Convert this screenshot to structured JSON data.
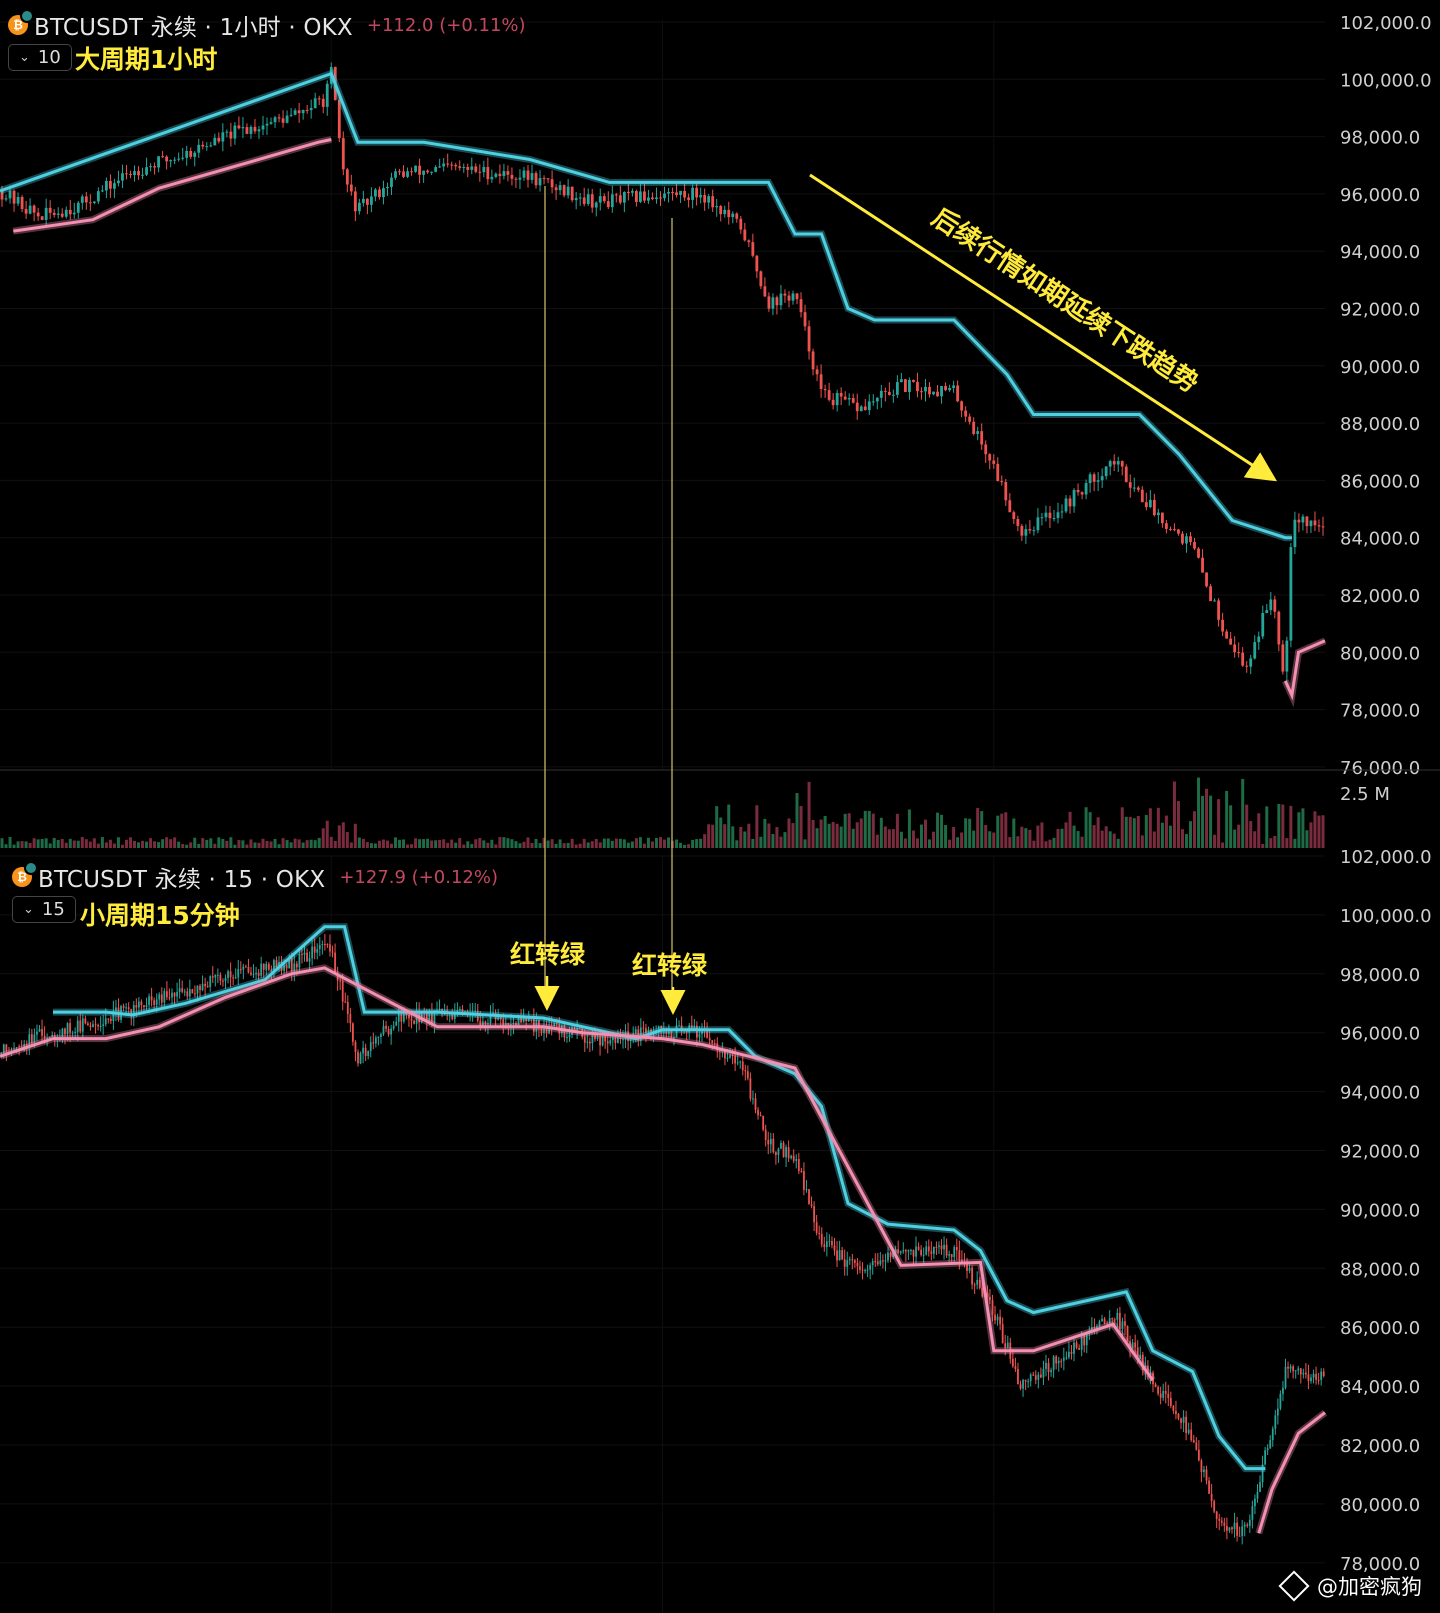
{
  "top_header": {
    "symbol": "BTCUSDT 永续 · 1小时 · OKX",
    "change": "+112.0 (+0.11%)",
    "interval_box": "10",
    "tag": "大周期1小时"
  },
  "bottom_header": {
    "symbol": "BTCUSDT 永续 · 15 · OKX",
    "change": "+127.9 (+0.12%)",
    "interval_box": "15",
    "tag": "小周期15分钟"
  },
  "annotations": {
    "trend_text": "后续行情如期延续下跌趋势",
    "arrow_label_1": "红转绿",
    "arrow_label_2": "红转绿"
  },
  "watermark": "@加密疯狗",
  "colors": {
    "up": "#26a69a",
    "down": "#ef5350",
    "resistance": "#4dd0e1",
    "support": "#f48fb1",
    "annotation": "#ffeb3b"
  },
  "chart_data": [
    {
      "type": "candlestick",
      "title": "BTCUSDT 永续 · 1小时 · OKX",
      "y_ticks": [
        "102,000.0",
        "100,000.0",
        "98,000.0",
        "96,000.0",
        "94,000.0",
        "92,000.0",
        "90,000.0",
        "88,000.0",
        "86,000.0",
        "84,000.0",
        "82,000.0",
        "80,000.0",
        "78,000.0",
        "76,000.0"
      ],
      "ylim": [
        76000,
        102600
      ],
      "volume_tick": "2.5 M",
      "price_path": [
        [
          0,
          96100
        ],
        [
          0.03,
          95200
        ],
        [
          0.06,
          95600
        ],
        [
          0.1,
          96800
        ],
        [
          0.14,
          97400
        ],
        [
          0.18,
          98200
        ],
        [
          0.22,
          98700
        ],
        [
          0.245,
          99300
        ],
        [
          0.25,
          100200
        ],
        [
          0.26,
          96500
        ],
        [
          0.27,
          95400
        ],
        [
          0.3,
          96700
        ],
        [
          0.34,
          96900
        ],
        [
          0.4,
          96600
        ],
        [
          0.45,
          95700
        ],
        [
          0.5,
          96000
        ],
        [
          0.53,
          96000
        ],
        [
          0.56,
          94800
        ],
        [
          0.58,
          92200
        ],
        [
          0.6,
          92500
        ],
        [
          0.62,
          89000
        ],
        [
          0.65,
          88500
        ],
        [
          0.68,
          89300
        ],
        [
          0.72,
          89100
        ],
        [
          0.75,
          86500
        ],
        [
          0.77,
          84200
        ],
        [
          0.8,
          85000
        ],
        [
          0.84,
          86700
        ],
        [
          0.87,
          85000
        ],
        [
          0.9,
          83700
        ],
        [
          0.92,
          81200
        ],
        [
          0.94,
          79400
        ],
        [
          0.96,
          82100
        ],
        [
          0.97,
          79000
        ],
        [
          0.975,
          84800
        ],
        [
          1.0,
          84300
        ]
      ],
      "resistance_path": [
        [
          0,
          96100
        ],
        [
          0.25,
          100200
        ],
        [
          0.27,
          97800
        ],
        [
          0.32,
          97800
        ],
        [
          0.4,
          97200
        ],
        [
          0.46,
          96400
        ],
        [
          0.58,
          96400
        ],
        [
          0.6,
          94600
        ],
        [
          0.62,
          94600
        ],
        [
          0.64,
          92000
        ],
        [
          0.66,
          91600
        ],
        [
          0.72,
          91600
        ],
        [
          0.76,
          89700
        ],
        [
          0.78,
          88300
        ],
        [
          0.86,
          88300
        ],
        [
          0.89,
          86900
        ],
        [
          0.93,
          84600
        ],
        [
          0.97,
          84000
        ],
        [
          0.975,
          84000
        ]
      ],
      "support_path": [
        [
          0.01,
          94700
        ],
        [
          0.07,
          95100
        ],
        [
          0.12,
          96200
        ],
        [
          0.18,
          97000
        ],
        [
          0.24,
          97800
        ],
        [
          0.25,
          97900
        ]
      ],
      "support_path_2": [
        [
          0.97,
          79000
        ],
        [
          0.975,
          78500
        ],
        [
          0.98,
          80000
        ],
        [
          1.0,
          80400
        ]
      ]
    },
    {
      "type": "candlestick",
      "title": "BTCUSDT 永续 · 15 · OKX",
      "y_ticks": [
        "102,000.0",
        "100,000.0",
        "98,000.0",
        "96,000.0",
        "94,000.0",
        "92,000.0",
        "90,000.0",
        "88,000.0",
        "86,000.0",
        "84,000.0",
        "82,000.0",
        "80,000.0",
        "78,000.0"
      ],
      "ylim": [
        77900,
        102200
      ],
      "price_path": [
        [
          0,
          95300
        ],
        [
          0.03,
          95900
        ],
        [
          0.06,
          96200
        ],
        [
          0.1,
          96800
        ],
        [
          0.14,
          97400
        ],
        [
          0.18,
          98100
        ],
        [
          0.22,
          98300
        ],
        [
          0.245,
          99000
        ],
        [
          0.25,
          98800
        ],
        [
          0.27,
          95100
        ],
        [
          0.3,
          96500
        ],
        [
          0.34,
          96600
        ],
        [
          0.4,
          96300
        ],
        [
          0.45,
          95800
        ],
        [
          0.5,
          96000
        ],
        [
          0.53,
          96100
        ],
        [
          0.56,
          94800
        ],
        [
          0.58,
          92200
        ],
        [
          0.6,
          91800
        ],
        [
          0.62,
          88900
        ],
        [
          0.65,
          87800
        ],
        [
          0.68,
          88600
        ],
        [
          0.72,
          88600
        ],
        [
          0.75,
          86500
        ],
        [
          0.77,
          84100
        ],
        [
          0.8,
          84900
        ],
        [
          0.84,
          86500
        ],
        [
          0.87,
          84200
        ],
        [
          0.9,
          82300
        ],
        [
          0.92,
          79200
        ],
        [
          0.94,
          79100
        ],
        [
          0.96,
          82500
        ],
        [
          0.97,
          84500
        ],
        [
          1.0,
          84300
        ]
      ],
      "resistance_path": [
        [
          0.04,
          96700
        ],
        [
          0.08,
          96700
        ],
        [
          0.1,
          96600
        ],
        [
          0.14,
          97000
        ],
        [
          0.2,
          97800
        ],
        [
          0.245,
          99600
        ],
        [
          0.26,
          99600
        ],
        [
          0.275,
          96700
        ],
        [
          0.33,
          96700
        ],
        [
          0.41,
          96500
        ],
        [
          0.44,
          96200
        ],
        [
          0.48,
          95800
        ],
        [
          0.5,
          96100
        ],
        [
          0.55,
          96100
        ],
        [
          0.57,
          95200
        ],
        [
          0.6,
          94600
        ],
        [
          0.62,
          93500
        ],
        [
          0.64,
          90200
        ],
        [
          0.67,
          89500
        ],
        [
          0.72,
          89300
        ],
        [
          0.74,
          88600
        ],
        [
          0.76,
          86900
        ],
        [
          0.78,
          86500
        ],
        [
          0.85,
          87200
        ],
        [
          0.87,
          85200
        ],
        [
          0.9,
          84500
        ],
        [
          0.92,
          82300
        ],
        [
          0.94,
          81200
        ],
        [
          0.955,
          81200
        ]
      ],
      "support_path": [
        [
          0,
          95200
        ],
        [
          0.04,
          95800
        ],
        [
          0.08,
          95800
        ],
        [
          0.12,
          96200
        ],
        [
          0.17,
          97200
        ],
        [
          0.22,
          98000
        ],
        [
          0.245,
          98200
        ],
        [
          0.33,
          96200
        ],
        [
          0.41,
          96200
        ],
        [
          0.44,
          96000
        ],
        [
          0.5,
          95800
        ],
        [
          0.53,
          95600
        ],
        [
          0.6,
          94800
        ],
        [
          0.68,
          88100
        ],
        [
          0.74,
          88200
        ],
        [
          0.75,
          85200
        ],
        [
          0.78,
          85200
        ],
        [
          0.84,
          86100
        ],
        [
          0.87,
          84200
        ]
      ],
      "support_path_2": [
        [
          0.95,
          79000
        ],
        [
          0.96,
          80500
        ],
        [
          0.98,
          82400
        ],
        [
          1.0,
          83100
        ]
      ]
    }
  ]
}
